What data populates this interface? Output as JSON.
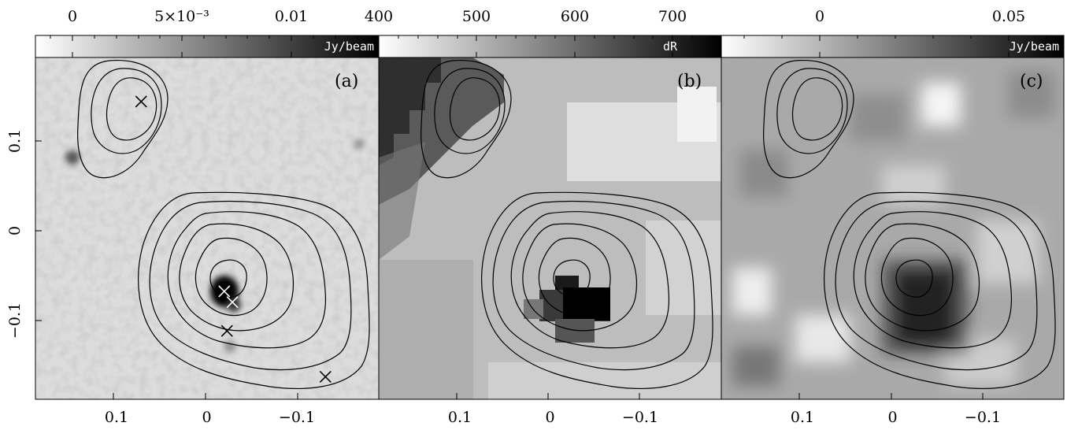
{
  "figure": {
    "panels": [
      {
        "id": "a",
        "tag": "(a)",
        "colorbar": {
          "unit": "Jy/beam",
          "ticks": [
            "0",
            "5×10⁻³",
            "0.01"
          ],
          "range": [
            -0.001,
            0.0135
          ]
        },
        "markers": [
          {
            "x": 0.073,
            "y": 0.141,
            "color": "#000000"
          },
          {
            "x": -0.019,
            "y": -0.07,
            "color": "#ffffff"
          },
          {
            "x": -0.028,
            "y": -0.082,
            "color": "#ffffff"
          },
          {
            "x": -0.022,
            "y": -0.114,
            "color": "#000000"
          },
          {
            "x": -0.131,
            "y": -0.165,
            "color": "#000000"
          }
        ]
      },
      {
        "id": "b",
        "tag": "(b)",
        "colorbar": {
          "unit": "dR",
          "ticks": [
            "400",
            "500",
            "600",
            "700"
          ],
          "range": [
            400,
            750
          ]
        },
        "markers": []
      },
      {
        "id": "c",
        "tag": "(c)",
        "colorbar": {
          "unit": "Jy/beam",
          "ticks": [
            "0",
            "0.05"
          ],
          "range": [
            -0.015,
            0.075
          ]
        },
        "markers": []
      }
    ],
    "x_axis": {
      "ticks": [
        "0.1",
        "0",
        "−0.1"
      ],
      "range": [
        0.19,
        -0.19
      ]
    },
    "y_axis": {
      "ticks": [
        "0.1",
        "0",
        "−0.1"
      ],
      "range": [
        -0.19,
        0.19
      ]
    }
  }
}
